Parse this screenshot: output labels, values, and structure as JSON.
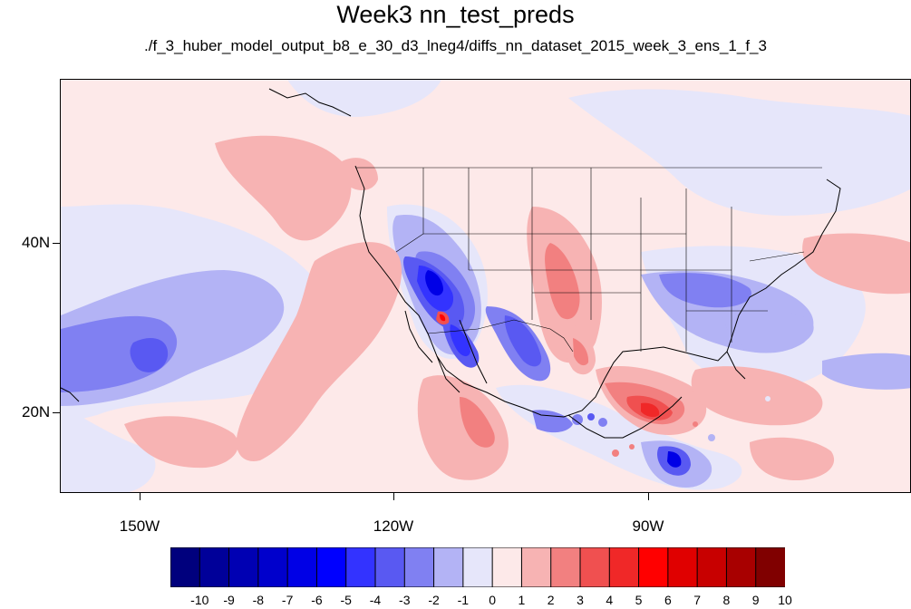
{
  "title": "Week3 nn_test_preds",
  "subtitle": "./f_3_huber_model_output_b8_e_30_d3_lneg4/diffs_nn_dataset_2015_week_3_ens_1_f_3",
  "lon_labels": [
    "150W",
    "120W",
    "90W"
  ],
  "lat_labels": [
    "40N",
    "20N"
  ],
  "colorbar": {
    "labels": [
      "-10",
      "-9",
      "-8",
      "-7",
      "-6",
      "-5",
      "-4",
      "-3",
      "-2",
      "-1",
      "0",
      "1",
      "2",
      "3",
      "4",
      "5",
      "6",
      "7",
      "8",
      "9",
      "10"
    ],
    "colors": [
      "#00007d",
      "#000099",
      "#0000b3",
      "#0000cc",
      "#0000e6",
      "#0000ff",
      "#3333ff",
      "#5959f2",
      "#8080f2",
      "#b3b3f5",
      "#e6e6fa",
      "#fde9e9",
      "#f7b3b3",
      "#f28080",
      "#f05050",
      "#f02828",
      "#ff0000",
      "#e00000",
      "#c80000",
      "#a80000",
      "#800000"
    ]
  },
  "map_colors": {
    "background": "#fde9e9",
    "light_blue": "#e6e6fa",
    "mid_blue": "#b3b3f5",
    "blue": "#8080f2",
    "strong_blue": "#5959f2",
    "dark_blue": "#0000e6",
    "light_red": "#f7b3b3",
    "mid_red": "#f28080",
    "red": "#f05050",
    "strong_red": "#ff0000"
  }
}
